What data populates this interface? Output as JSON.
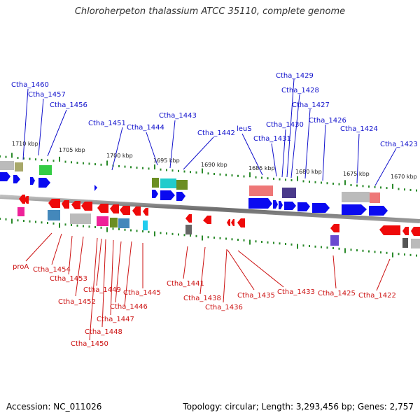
{
  "title": "Chloroherpeton thalassium ATCC 35110, complete genome",
  "footer": {
    "accession": "Accession: NC_011026",
    "topology": "Topology: circular; Length: 3,293,456 bp; Genes: 2,757"
  },
  "ruler_labels": [
    "1710 kbp",
    "1705 kbp",
    "1700 kbp",
    "1695 kbp",
    "1690 kbp",
    "1685 kbp",
    "1680 kbp",
    "1675 kbp",
    "1670 kbp"
  ],
  "top_labels": [
    "Ctha_1460",
    "Ctha_1457",
    "Ctha_1456",
    "Ctha_1451",
    "Ctha_1444",
    "Ctha_1443",
    "Ctha_1442",
    "leuS",
    "Ctha_1431",
    "Ctha_1430",
    "Ctha_1429",
    "Ctha_1428",
    "Ctha_1427",
    "Ctha_1426",
    "Ctha_1424",
    "Ctha_1423"
  ],
  "bottom_labels": [
    "proA",
    "Ctha_1454",
    "Ctha_1453",
    "Ctha_1452",
    "Ctha_1449",
    "Ctha_1450",
    "Ctha_1448",
    "Ctha_1447",
    "Ctha_1446",
    "Ctha_1445",
    "Ctha_1441",
    "Ctha_1438",
    "Ctha_1436",
    "Ctha_1435",
    "Ctha_1433",
    "Ctha_1425",
    "Ctha_1422"
  ],
  "colors": {
    "forward": "#0a0af0",
    "reverse": "#ee0a0a",
    "backbone": "#7a7a7a",
    "tick": "#2a8a2a"
  }
}
